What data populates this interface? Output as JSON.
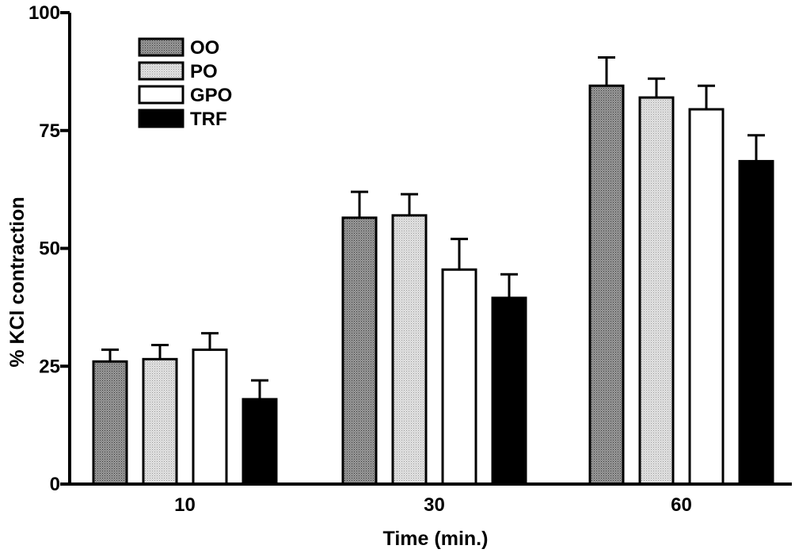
{
  "chart_data": {
    "type": "bar",
    "title": "",
    "xlabel": "Time (min.)",
    "ylabel": "% KCl contraction",
    "ylim": [
      0,
      100
    ],
    "yticks": [
      "0",
      "25",
      "50",
      "75",
      "100"
    ],
    "categories": [
      "10",
      "30",
      "60"
    ],
    "series": [
      {
        "name": "OO",
        "fill": "dark-dotted",
        "values": [
          26,
          56.5,
          84.5
        ],
        "errors": [
          2.5,
          5.5,
          6
        ]
      },
      {
        "name": "PO",
        "fill": "light-dotted",
        "values": [
          26.5,
          57,
          82
        ],
        "errors": [
          3,
          4.5,
          4
        ]
      },
      {
        "name": "GPO",
        "fill": "white",
        "values": [
          28.5,
          45.5,
          79.5
        ],
        "errors": [
          3.5,
          6.5,
          5
        ]
      },
      {
        "name": "TRF",
        "fill": "black",
        "values": [
          18,
          39.5,
          68.5
        ],
        "errors": [
          4,
          5,
          5.5
        ]
      }
    ],
    "legend_position": "top-left",
    "grid": false,
    "colors": {
      "axis": "#000000",
      "bar_outline": "#000000",
      "trf": "#000000",
      "gpo": "#ffffff"
    }
  }
}
